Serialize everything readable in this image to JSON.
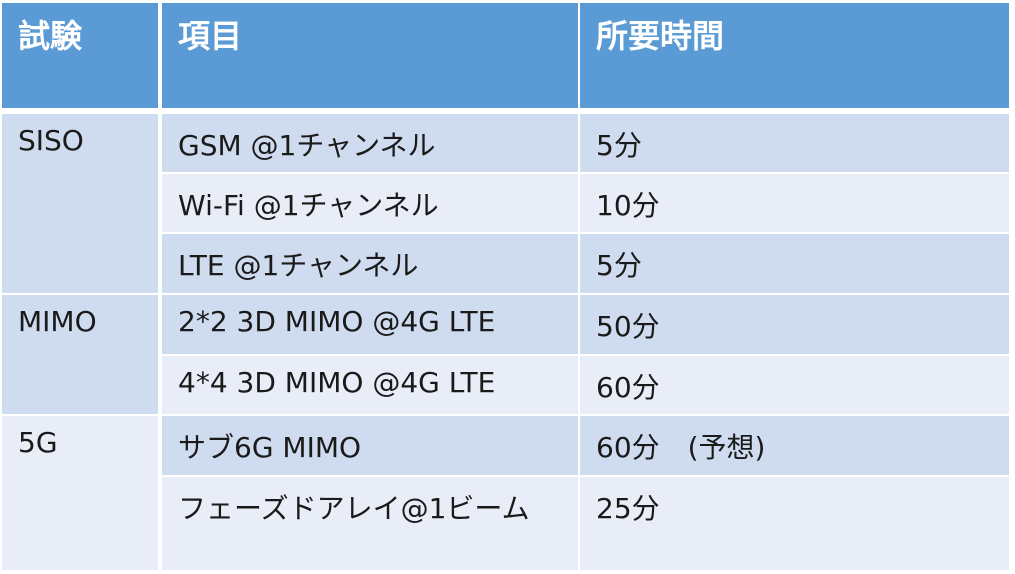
{
  "table": {
    "headers": [
      "試験",
      "項目",
      "所要時間"
    ],
    "groups": [
      {
        "test": "SISO",
        "rows": [
          {
            "item": "GSM @1チャンネル",
            "time": "5分"
          },
          {
            "item": "Wi-Fi @1チャンネル",
            "time": "10分"
          },
          {
            "item": "LTE @1チャンネル",
            "time": "5分"
          }
        ]
      },
      {
        "test": "MIMO",
        "rows": [
          {
            "item": "2*2 3D MIMO @4G LTE",
            "time": "50分"
          },
          {
            "item": "4*4 3D MIMO @4G LTE",
            "time": "60分"
          }
        ]
      },
      {
        "test": "5G",
        "rows": [
          {
            "item": "サブ6G MIMO",
            "time": "60分　(予想)"
          },
          {
            "item": "フェーズドアレイ@1ビーム",
            "time": "25分"
          }
        ]
      }
    ]
  }
}
